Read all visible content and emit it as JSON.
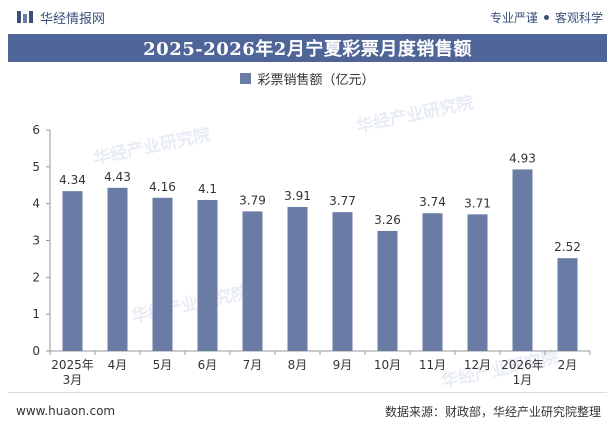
{
  "header": {
    "brand_name": "华经情报网",
    "slogan_left": "专业严谨",
    "slogan_right": "客观科学"
  },
  "title": "2025-2026年2月宁夏彩票月度销售额",
  "legend_label": "彩票销售额（亿元）",
  "watermark": "华经产业研究院",
  "footer": {
    "website": "www.huaon.com",
    "source": "数据来源：财政部，华经产业研究院整理"
  },
  "colors": {
    "bar": "#6a7ca6",
    "brand": "#3a4f7a",
    "title_band": "#4f6598"
  },
  "chart_data": {
    "type": "bar",
    "categories": [
      "2025年\n3月",
      "4月",
      "5月",
      "6月",
      "7月",
      "8月",
      "9月",
      "10月",
      "11月",
      "12月",
      "2026年\n1月",
      "2月"
    ],
    "series": [
      {
        "name": "彩票销售额（亿元）",
        "values": [
          4.34,
          4.43,
          4.16,
          4.1,
          3.79,
          3.91,
          3.77,
          3.26,
          3.74,
          3.71,
          4.93,
          2.52
        ]
      }
    ],
    "ylim": [
      0,
      6
    ],
    "yticks": [
      0,
      1,
      2,
      3,
      4,
      5,
      6
    ],
    "grid": false,
    "legend_position": "top-center",
    "data_labels": true
  }
}
